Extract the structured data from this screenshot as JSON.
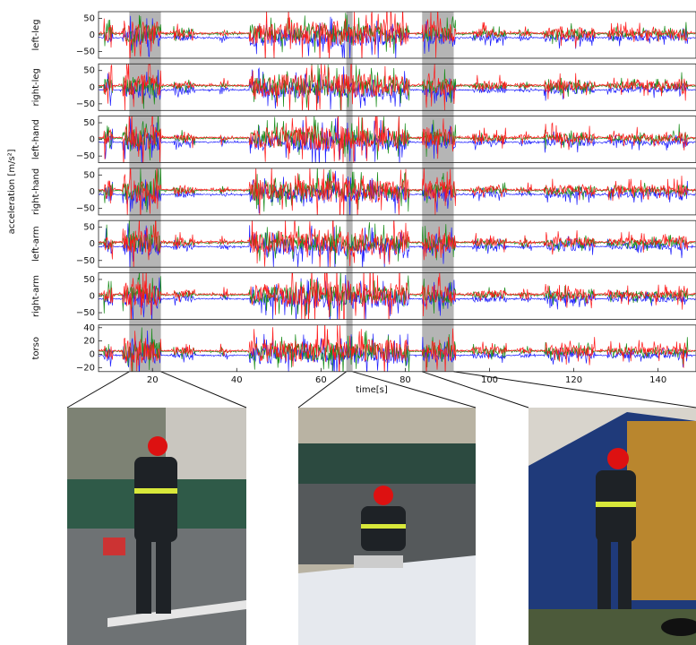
{
  "figure": {
    "y_label": "acceleration [m/s²]",
    "x_label": "time[s]",
    "xlim": [
      7.2,
      149
    ],
    "xticks": [
      20,
      40,
      60,
      80,
      100,
      120,
      140
    ],
    "highlights": [
      [
        14.5,
        22
      ],
      [
        66,
        67.5
      ],
      [
        84,
        91.5
      ]
    ],
    "series_colors": [
      "#1f1fff",
      "#1a8c1a",
      "#ff1a1a"
    ],
    "panels": [
      {
        "label": "left-leg",
        "ylim": [
          -70,
          70
        ],
        "yticks": [
          50,
          0,
          {
            "value": -50,
            "label": "−50"
          }
        ]
      },
      {
        "label": "right-leg",
        "ylim": [
          -70,
          70
        ],
        "yticks": [
          50,
          0,
          {
            "value": -50,
            "label": "−50"
          }
        ]
      },
      {
        "label": "left-hand",
        "ylim": [
          -70,
          70
        ],
        "yticks": [
          50,
          0,
          {
            "value": -50,
            "label": "−50"
          }
        ]
      },
      {
        "label": "right-hand",
        "ylim": [
          -70,
          70
        ],
        "yticks": [
          50,
          0,
          {
            "value": -50,
            "label": "−50"
          }
        ]
      },
      {
        "label": "left-arm",
        "ylim": [
          -70,
          70
        ],
        "yticks": [
          50,
          0,
          {
            "value": -50,
            "label": "−50"
          }
        ]
      },
      {
        "label": "right-arm",
        "ylim": [
          -70,
          70
        ],
        "yticks": [
          50,
          0,
          {
            "value": -50,
            "label": "−50"
          }
        ]
      },
      {
        "label": "torso",
        "ylim": [
          -26,
          44
        ],
        "yticks": [
          40,
          20,
          0,
          {
            "value": -20,
            "label": "−20"
          }
        ]
      }
    ]
  }
}
